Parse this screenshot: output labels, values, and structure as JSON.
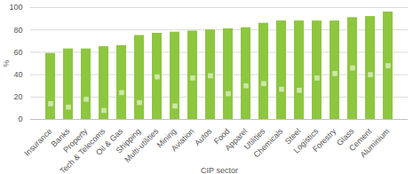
{
  "chart_data": {
    "type": "bar",
    "categories": [
      "Insurance",
      "Banks",
      "Property",
      "Tech & Telecoms",
      "Oil & Gas",
      "Shipping",
      "Multi-utilities",
      "Mining",
      "Aviation",
      "Autos",
      "Food",
      "Apparel",
      "Utilities",
      "Chemicals",
      "Steel",
      "Logistics",
      "Forestry",
      "Glass",
      "Cement",
      "Aluminium"
    ],
    "series": [
      {
        "type": "bar",
        "color": "#8dc63f",
        "values": [
          59,
          63,
          63,
          65,
          66,
          75,
          77,
          78,
          79,
          80,
          81,
          82,
          86,
          88,
          88,
          88,
          88,
          91,
          92,
          96
        ]
      },
      {
        "type": "scatter",
        "marker": "square",
        "color": "#cde6a8",
        "values": [
          14,
          11,
          18,
          8,
          24,
          15,
          38,
          12,
          37,
          39,
          23,
          30,
          32,
          27,
          26,
          37,
          41,
          46,
          40,
          48
        ]
      }
    ],
    "x_label": "CIP sector",
    "y_label": "%",
    "ylim": [
      0,
      100
    ],
    "yticks": [
      0,
      20,
      40,
      60,
      80,
      100
    ],
    "grid": true
  }
}
